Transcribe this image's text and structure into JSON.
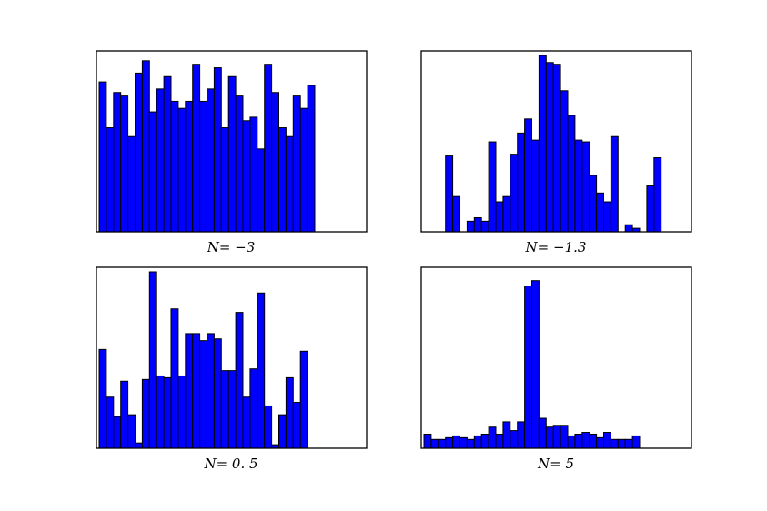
{
  "colors": {
    "bar_fill": "#0000ff",
    "bar_edge": "#000000"
  },
  "chart_data": [
    {
      "type": "bar",
      "caption": "N= −3",
      "xlabel": "",
      "ylabel": "",
      "grid": false,
      "ylim": [
        0,
        1
      ],
      "values": [
        0.85,
        0.59,
        0.79,
        0.77,
        0.54,
        0.9,
        0.97,
        0.68,
        0.81,
        0.88,
        0.74,
        0.7,
        0.74,
        0.95,
        0.74,
        0.81,
        0.93,
        0.59,
        0.88,
        0.77,
        0.63,
        0.65,
        0.47,
        0.95,
        0.79,
        0.59,
        0.54,
        0.77,
        0.7,
        0.83
      ]
    },
    {
      "type": "bar",
      "caption": "N= −1.3",
      "xlabel": "",
      "ylabel": "",
      "grid": false,
      "ylim": [
        0,
        1
      ],
      "values": [
        0,
        0,
        0,
        0.43,
        0.2,
        0,
        0.06,
        0.08,
        0.06,
        0.51,
        0.17,
        0.2,
        0.44,
        0.56,
        0.64,
        0.52,
        1.0,
        0.96,
        0.95,
        0.8,
        0.66,
        0.52,
        0.51,
        0.32,
        0.22,
        0.17,
        0.54,
        0,
        0.04,
        0.02,
        0,
        0.26,
        0.42,
        0
      ]
    },
    {
      "type": "bar",
      "caption": "N= 0. 5",
      "xlabel": "",
      "ylabel": "",
      "grid": false,
      "ylim": [
        0,
        1
      ],
      "values": [
        0.56,
        0.29,
        0.18,
        0.38,
        0.19,
        0.03,
        0.39,
        1.0,
        0.41,
        0.4,
        0.79,
        0.41,
        0.65,
        0.65,
        0.61,
        0.65,
        0.62,
        0.44,
        0.44,
        0.77,
        0.29,
        0.45,
        0.88,
        0.24,
        0.02,
        0.19,
        0.4,
        0.26,
        0.55
      ]
    },
    {
      "type": "bar",
      "caption": "N= 5",
      "xlabel": "",
      "ylabel": "",
      "grid": false,
      "ylim": [
        0,
        1
      ],
      "values": [
        0.08,
        0.05,
        0.05,
        0.06,
        0.07,
        0.06,
        0.05,
        0.07,
        0.08,
        0.12,
        0.08,
        0.15,
        0.1,
        0.15,
        0.92,
        0.95,
        0.17,
        0.12,
        0.13,
        0.13,
        0.07,
        0.08,
        0.09,
        0.08,
        0.06,
        0.09,
        0.05,
        0.05,
        0.05,
        0.07
      ]
    }
  ]
}
